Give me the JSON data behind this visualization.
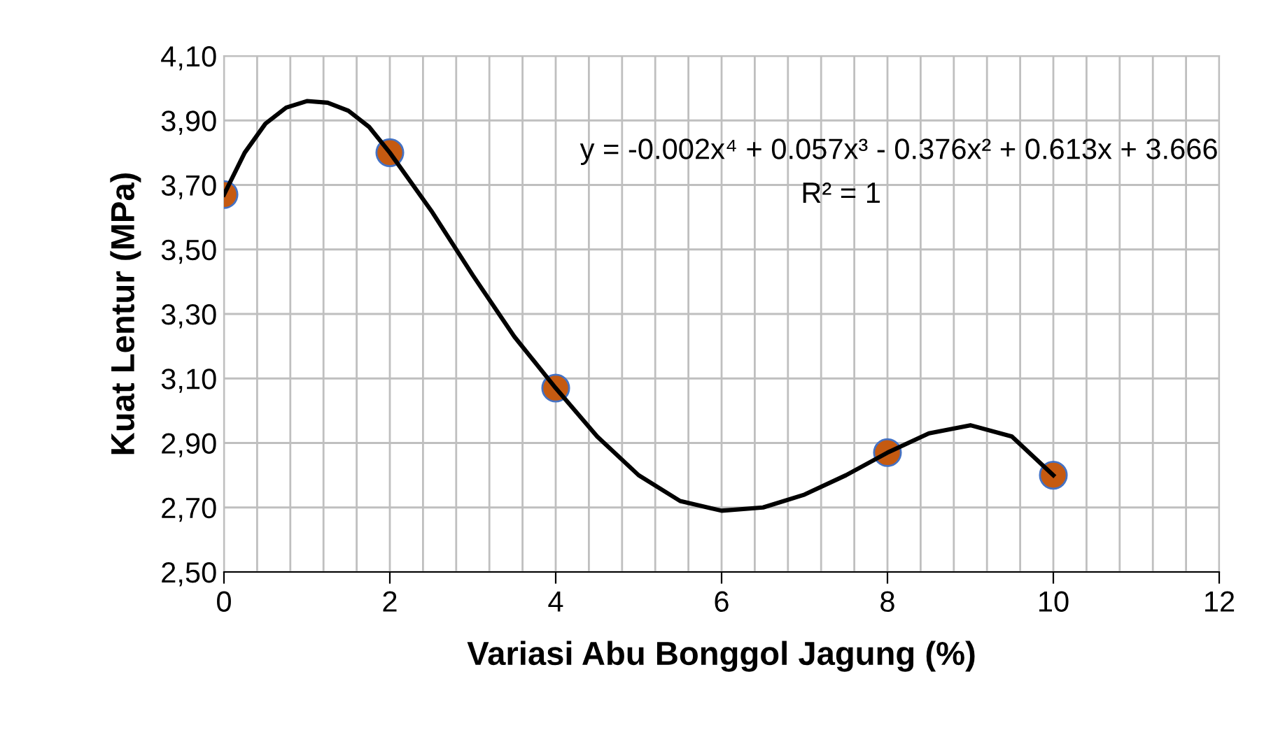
{
  "chart_data": {
    "type": "scatter",
    "xlabel": "Variasi Abu Bonggol Jagung (%)",
    "ylabel": "Kuat Lentur (MPa)",
    "x": [
      0,
      2,
      4,
      8,
      10
    ],
    "series": [
      {
        "color": "#c55a11",
        "marker": "circle",
        "values": [
          3.67,
          3.8,
          3.07,
          2.87,
          2.8
        ]
      },
      {
        "type": "line",
        "color": "#000000",
        "marker": "none",
        "x": [
          0,
          0.25,
          0.5,
          0.75,
          1.0,
          1.25,
          1.5,
          1.75,
          2,
          2.5,
          3,
          3.5,
          4,
          4.5,
          5,
          5.5,
          6,
          6.5,
          7,
          7.5,
          8,
          8.5,
          9,
          9.5,
          10
        ],
        "values": [
          3.67,
          3.8,
          3.89,
          3.94,
          3.96,
          3.955,
          3.93,
          3.88,
          3.8,
          3.62,
          3.42,
          3.23,
          3.07,
          2.92,
          2.8,
          2.72,
          2.69,
          2.7,
          2.74,
          2.8,
          2.87,
          2.93,
          2.955,
          2.92,
          2.8
        ]
      }
    ],
    "xlim": [
      0,
      12
    ],
    "xticks": [
      0,
      {
        "value": 0.4,
        "label": null
      },
      {
        "value": 0.8,
        "label": null
      },
      {
        "value": 1.2,
        "label": null
      },
      {
        "value": 1.6,
        "label": null
      },
      2,
      {
        "value": 2.4,
        "label": null
      },
      {
        "value": 2.8,
        "label": null
      },
      {
        "value": 3.2,
        "label": null
      },
      {
        "value": 3.6,
        "label": null
      },
      4,
      {
        "value": 4.4,
        "label": null
      },
      {
        "value": 4.8,
        "label": null
      },
      {
        "value": 5.2,
        "label": null
      },
      {
        "value": 5.6,
        "label": null
      },
      6,
      {
        "value": 6.4,
        "label": null
      },
      {
        "value": 6.8,
        "label": null
      },
      {
        "value": 7.2,
        "label": null
      },
      {
        "value": 7.6,
        "label": null
      },
      8,
      {
        "value": 8.4,
        "label": null
      },
      {
        "value": 8.8,
        "label": null
      },
      {
        "value": 9.2,
        "label": null
      },
      {
        "value": 9.6,
        "label": null
      },
      10,
      {
        "value": 10.4,
        "label": null
      },
      {
        "value": 10.8,
        "label": null
      },
      {
        "value": 11.2,
        "label": null
      },
      {
        "value": 11.6,
        "label": null
      },
      12
    ],
    "ylim": [
      2.5,
      4.1
    ],
    "yticks": [
      {
        "value": 2.5,
        "label": "2,50"
      },
      {
        "value": 2.7,
        "label": "2,70"
      },
      {
        "value": 2.9,
        "label": "2,90"
      },
      {
        "value": 3.1,
        "label": "3,10"
      },
      {
        "value": 3.3,
        "label": "3,30"
      },
      {
        "value": 3.5,
        "label": "3,50"
      },
      {
        "value": 3.7,
        "label": "3,70"
      },
      {
        "value": 3.9,
        "label": "3,90"
      },
      {
        "value": 4.1,
        "label": "4,10"
      }
    ],
    "grid": true,
    "annotations": [
      "y = -0.002x⁴ + 0.057x³ - 0.376x² + 0.613x + 3.666",
      "R² = 1"
    ]
  }
}
